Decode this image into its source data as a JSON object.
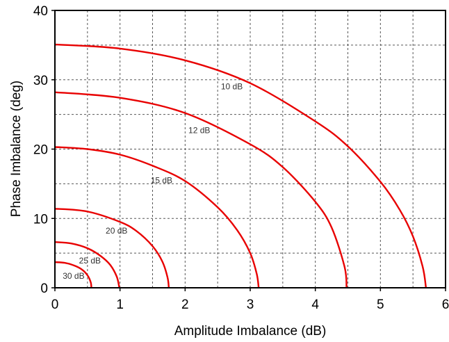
{
  "chart_data": {
    "type": "line",
    "xlabel": "Amplitude Imbalance (dB)",
    "ylabel": "Phase Imbalance (deg)",
    "xlim": [
      0,
      6
    ],
    "ylim": [
      0,
      40
    ],
    "xticks": [
      "0",
      "1",
      "2",
      "3",
      "4",
      "5",
      "6"
    ],
    "yticks": [
      "0",
      "10",
      "20",
      "30",
      "40"
    ],
    "grid": true,
    "series": [
      {
        "name": "10 dB",
        "x": [
          0,
          1,
          2,
          3,
          4,
          4.5,
          5,
          5.3,
          5.5,
          5.65,
          5.7
        ],
        "y": [
          35.1,
          34.5,
          32.8,
          29.5,
          24.0,
          20.4,
          15.3,
          11.2,
          7.4,
          3.0,
          0
        ]
      },
      {
        "name": "12 dB",
        "x": [
          0,
          1,
          2,
          3,
          3.5,
          4,
          4.25,
          4.45,
          4.48
        ],
        "y": [
          28.2,
          27.4,
          25.2,
          20.7,
          17.4,
          12.4,
          8.7,
          3.0,
          0
        ]
      },
      {
        "name": "15 dB",
        "x": [
          0,
          0.5,
          1,
          1.5,
          2,
          2.5,
          2.8,
          3.0,
          3.1,
          3.13
        ],
        "y": [
          20.3,
          20.0,
          19.2,
          17.6,
          15.4,
          11.6,
          8.3,
          5.0,
          2.0,
          0
        ]
      },
      {
        "name": "20 dB",
        "x": [
          0,
          0.5,
          1,
          1.25,
          1.5,
          1.65,
          1.73,
          1.75
        ],
        "y": [
          11.4,
          11.0,
          9.5,
          8.2,
          6.0,
          3.8,
          1.5,
          0
        ]
      },
      {
        "name": "25 dB",
        "x": [
          0,
          0.25,
          0.5,
          0.7,
          0.85,
          0.95,
          0.99
        ],
        "y": [
          6.6,
          6.4,
          5.7,
          4.6,
          3.3,
          1.6,
          0
        ]
      },
      {
        "name": "30 dB",
        "x": [
          0,
          0.15,
          0.3,
          0.42,
          0.5,
          0.55,
          0.56
        ],
        "y": [
          3.7,
          3.6,
          3.2,
          2.6,
          1.8,
          0.8,
          0
        ]
      }
    ],
    "labels": [
      {
        "text": "10 dB",
        "x": 2.55,
        "y": 28.6
      },
      {
        "text": "12 dB",
        "x": 2.05,
        "y": 22.3
      },
      {
        "text": "15 dB",
        "x": 1.47,
        "y": 15.1
      },
      {
        "text": "20 dB",
        "x": 0.78,
        "y": 7.8
      },
      {
        "text": "25 dB",
        "x": 0.37,
        "y": 3.5
      },
      {
        "text": "30 dB",
        "x": 0.12,
        "y": 1.3
      }
    ],
    "line_color": "#e80000"
  }
}
